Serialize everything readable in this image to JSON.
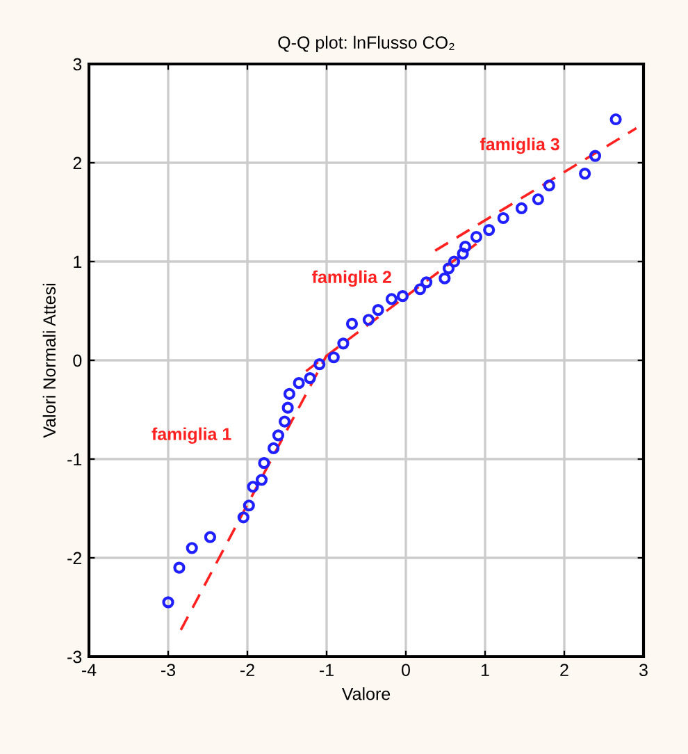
{
  "chart_data": {
    "type": "scatter",
    "title": "Q-Q plot: lnFlusso CO₂",
    "xlabel": "Valore",
    "ylabel": "Valori Normali Attesi",
    "xlim": [
      -4,
      3
    ],
    "xticks": [
      -4,
      -3,
      -2,
      -1,
      0,
      1,
      2,
      3
    ],
    "ylim": [
      -3,
      3
    ],
    "yticks": [
      -3,
      -2,
      -1,
      0,
      1,
      2,
      3
    ],
    "grid": true,
    "legend": false,
    "marker": "circle",
    "series": [
      {
        "color": "#2020ff",
        "x": [
          -3.0,
          -2.86,
          -2.7,
          -2.47,
          -2.05,
          -1.98,
          -1.93,
          -1.82,
          -1.79,
          -1.67,
          -1.61,
          -1.53,
          -1.49,
          -1.47,
          -1.35,
          -1.21,
          -1.09,
          -0.91,
          -0.79,
          -0.68,
          -0.47,
          -0.35,
          -0.18,
          -0.04,
          0.18,
          0.26,
          0.49,
          0.54,
          0.61,
          0.72,
          0.75,
          0.89,
          1.05,
          1.23,
          1.46,
          1.67,
          1.81,
          2.26,
          2.39,
          2.65
        ],
        "values": [
          -2.45,
          -2.1,
          -1.9,
          -1.79,
          -1.59,
          -1.47,
          -1.28,
          -1.21,
          -1.04,
          -0.89,
          -0.76,
          -0.62,
          -0.48,
          -0.34,
          -0.23,
          -0.18,
          -0.04,
          0.03,
          0.17,
          0.37,
          0.41,
          0.51,
          0.62,
          0.65,
          0.72,
          0.79,
          0.83,
          0.93,
          1.0,
          1.08,
          1.15,
          1.25,
          1.32,
          1.44,
          1.54,
          1.63,
          1.77,
          1.89,
          2.07,
          2.44
        ]
      },
      {
        "type": "line",
        "color": "#ff2020",
        "line_style": "dashed",
        "marker": "none",
        "x": [
          -2.84,
          -1.0
        ],
        "values": [
          -2.73,
          0.05
        ]
      },
      {
        "type": "line",
        "color": "#ff2020",
        "line_style": "dashed",
        "marker": "none",
        "x": [
          -1.26,
          0.89
        ],
        "values": [
          -0.11,
          1.18
        ]
      },
      {
        "type": "line",
        "color": "#ff2020",
        "line_style": "dashed",
        "marker": "none",
        "x": [
          0.37,
          2.91
        ],
        "values": [
          1.11,
          2.35
        ]
      }
    ],
    "annotations": [
      "famiglia 1",
      "famiglia 2",
      "famiglia 3"
    ]
  }
}
